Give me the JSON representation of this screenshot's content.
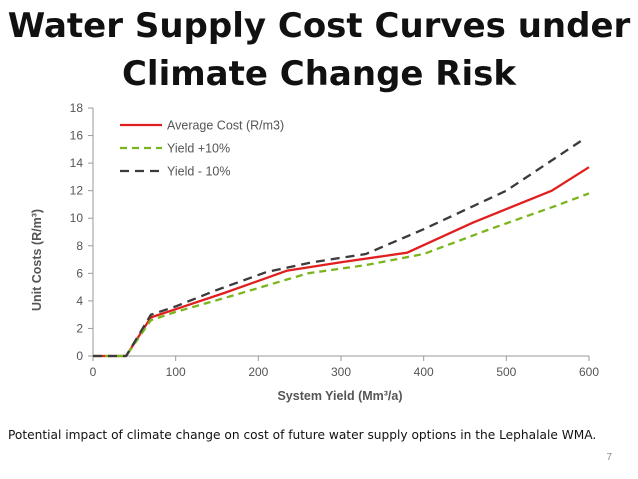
{
  "slide": {
    "title_line1": "Water Supply Cost Curves under",
    "title_line2": "Climate Change Risk",
    "caption": "Potential impact of climate change on cost of future water supply options in the Lephalale WMA.",
    "page_number": "7"
  },
  "chart_data": {
    "type": "line",
    "xlabel": "System Yield (Mm³/a)",
    "ylabel": "Unit Costs (R/m³)",
    "xlim": [
      0,
      600
    ],
    "ylim": [
      0,
      18
    ],
    "xticks": [
      0,
      100,
      200,
      300,
      400,
      500,
      600
    ],
    "yticks": [
      0,
      2,
      4,
      6,
      8,
      10,
      12,
      14,
      16,
      18
    ],
    "grid": false,
    "legend_position": "top-left",
    "series": [
      {
        "name": "Average Cost (R/m3)",
        "color": "#e0201f",
        "dash": "solid",
        "x": [
          0,
          40,
          70,
          100,
          160,
          235,
          300,
          380,
          460,
          555,
          600
        ],
        "y": [
          0,
          0,
          2.8,
          3.4,
          4.6,
          6.2,
          6.8,
          7.5,
          9.7,
          12.0,
          13.7
        ]
      },
      {
        "name": "Yield +10%",
        "color": "#7ab51d",
        "dash": "dashed",
        "x": [
          0,
          40,
          70,
          100,
          170,
          260,
          330,
          400,
          480,
          560,
          600
        ],
        "y": [
          0,
          0,
          2.6,
          3.2,
          4.4,
          6.0,
          6.6,
          7.4,
          9.2,
          10.9,
          11.8
        ]
      },
      {
        "name": "Yield - 10%",
        "color": "#3b3b3b",
        "dash": "dashed",
        "x": [
          0,
          40,
          70,
          100,
          150,
          210,
          265,
          330,
          400,
          500,
          590
        ],
        "y": [
          0,
          0,
          3.0,
          3.6,
          4.8,
          6.1,
          6.8,
          7.4,
          9.2,
          12.0,
          15.6
        ]
      }
    ]
  }
}
